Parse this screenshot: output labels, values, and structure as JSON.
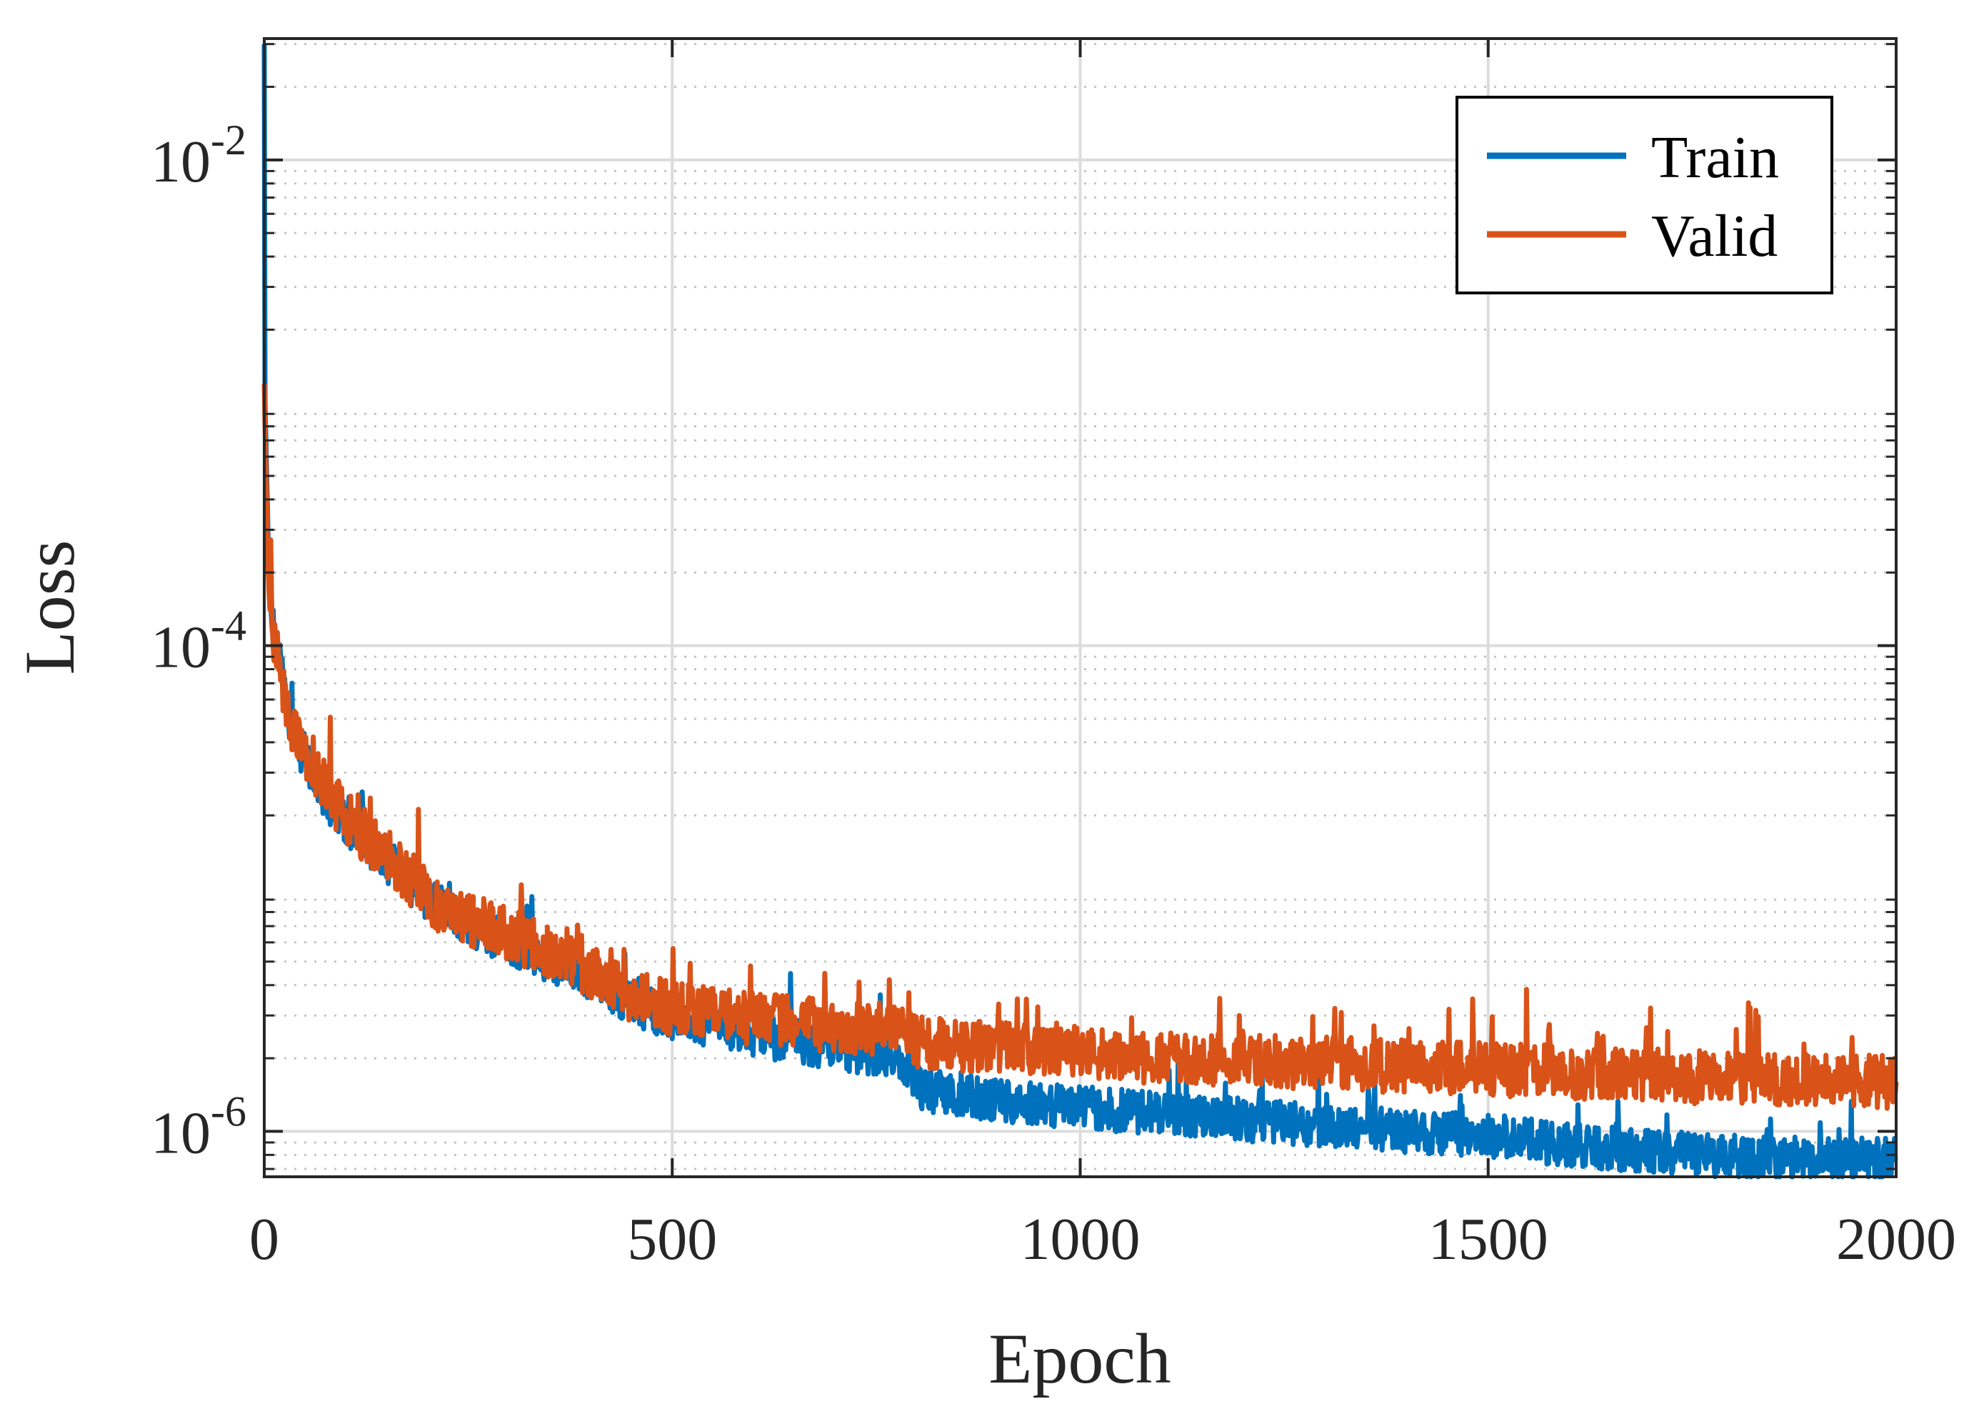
{
  "chart_data": {
    "type": "line",
    "title": "",
    "xlabel": "Epoch",
    "ylabel": "Loss",
    "xlim": [
      0,
      2000
    ],
    "ylim": [
      6.5e-07,
      0.0316
    ],
    "yscale": "log",
    "grid": true,
    "legend_position": "top-right",
    "x_ticks": [
      {
        "value": 0,
        "label": "0"
      },
      {
        "value": 500,
        "label": "500"
      },
      {
        "value": 1000,
        "label": "1000"
      },
      {
        "value": 1500,
        "label": "1500"
      },
      {
        "value": 2000,
        "label": "2000"
      }
    ],
    "y_ticks": [
      {
        "value": 1e-06,
        "base": "10",
        "exponent": "-6"
      },
      {
        "value": 0.0001,
        "base": "10",
        "exponent": "-4"
      },
      {
        "value": 0.01,
        "base": "10",
        "exponent": "-2"
      }
    ],
    "series": [
      {
        "name": "Train",
        "color": "#0072BD",
        "noise": 0.09,
        "x": [
          0,
          1,
          3,
          5,
          10,
          20,
          30,
          50,
          75,
          100,
          150,
          200,
          250,
          300,
          350,
          400,
          450,
          500,
          600,
          700,
          780,
          800,
          820,
          900,
          1000,
          1100,
          1200,
          1300,
          1400,
          1500,
          1600,
          1700,
          1800,
          1900,
          2000
        ],
        "y": [
          0.03,
          0.001,
          0.0005,
          0.00025,
          0.00013,
          8e-05,
          5e-05,
          3.4e-05,
          2.4e-05,
          1.8e-05,
          1.3e-05,
          9e-06,
          7e-06,
          6e-06,
          5e-06,
          4.2e-06,
          3.4e-06,
          2.9e-06,
          2.5e-06,
          2.2e-06,
          2e-06,
          1.55e-06,
          1.45e-06,
          1.35e-06,
          1.25e-06,
          1.18e-06,
          1.12e-06,
          1.05e-06,
          1e-06,
          9.6e-07,
          8.8e-07,
          8.2e-07,
          7.9e-07,
          7.7e-07,
          7.6e-07
        ]
      },
      {
        "name": "Valid",
        "color": "#D95319",
        "noise": 0.11,
        "x": [
          0,
          1,
          3,
          5,
          10,
          20,
          30,
          50,
          75,
          100,
          150,
          200,
          250,
          300,
          350,
          400,
          450,
          500,
          600,
          700,
          780,
          800,
          900,
          1000,
          1100,
          1200,
          1300,
          1400,
          1500,
          1600,
          1700,
          1800,
          1900,
          2000
        ],
        "y": [
          0.0012,
          0.0008,
          0.0004,
          0.0002,
          0.00012,
          7.5e-05,
          5e-05,
          3.5e-05,
          2.6e-05,
          1.9e-05,
          1.4e-05,
          9e-06,
          7.5e-06,
          6.5e-06,
          5.5e-06,
          4.5e-06,
          3.6e-06,
          3.2e-06,
          2.9e-06,
          2.7e-06,
          2.6e-06,
          2.3e-06,
          2.2e-06,
          2.1e-06,
          2e-06,
          1.95e-06,
          1.9e-06,
          1.85e-06,
          1.8e-06,
          1.75e-06,
          1.7e-06,
          1.65e-06,
          1.62e-06,
          1.6e-06
        ]
      }
    ]
  }
}
